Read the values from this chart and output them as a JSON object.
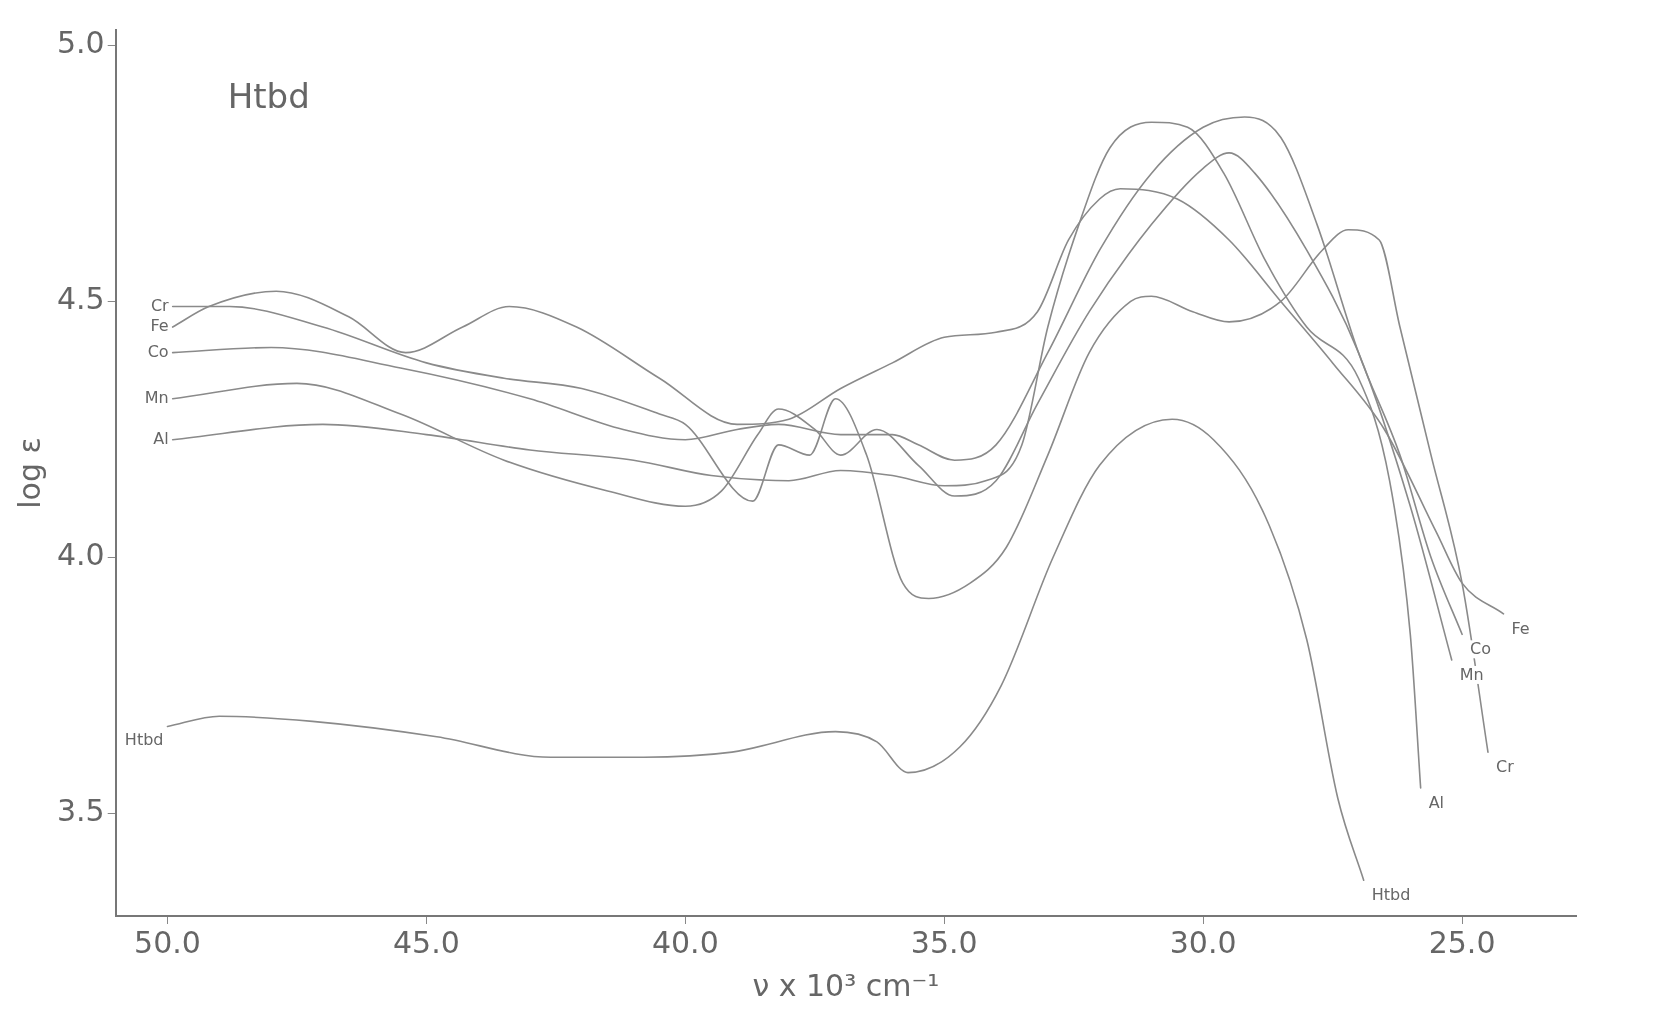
{
  "chart_data": {
    "type": "line",
    "title": "Htbd",
    "xlabel": "ν x 10³ cm⁻¹",
    "ylabel": "log ε",
    "xlim": [
      51.0,
      22.8
    ],
    "ylim": [
      3.3,
      5.03
    ],
    "xticks": [
      {
        "value": 50,
        "label": "50.0"
      },
      {
        "value": 45,
        "label": "45.0"
      },
      {
        "value": 40,
        "label": "40.0"
      },
      {
        "value": 35,
        "label": "35.0"
      },
      {
        "value": 30,
        "label": "30.0"
      },
      {
        "value": 25,
        "label": "25.0"
      }
    ],
    "yticks": [
      {
        "value": 3.5,
        "label": "3.5"
      },
      {
        "value": 4,
        "label": "4.0"
      },
      {
        "value": 4.5,
        "label": "4.5"
      },
      {
        "value": 5,
        "label": "5.0"
      }
    ],
    "grid": false,
    "legend": false,
    "marker": "none",
    "line_style": "solid",
    "series": [
      {
        "name": "Cr",
        "color": "#8a8a8a",
        "x": [
          49.9,
          48.8,
          47.0,
          45.0,
          43.5,
          42.0,
          40.5,
          40.0,
          38.7,
          38.2,
          37.6,
          37.1,
          36.5,
          35.8,
          35.3,
          34.5,
          33.8,
          33.0,
          32.2,
          31.4,
          31.0,
          30.2,
          29.5,
          28.5,
          27.7,
          27.2,
          26.6,
          26.2,
          25.6,
          25.0,
          24.5
        ],
        "values": [
          4.49,
          4.49,
          4.45,
          4.38,
          4.35,
          4.33,
          4.28,
          4.26,
          4.11,
          4.22,
          4.2,
          4.31,
          4.2,
          3.95,
          3.92,
          3.95,
          4.02,
          4.2,
          4.4,
          4.5,
          4.51,
          4.48,
          4.46,
          4.5,
          4.6,
          4.64,
          4.62,
          4.45,
          4.2,
          3.95,
          3.62
        ]
      },
      {
        "name": "Fe",
        "color": "#8a8a8a",
        "x": [
          49.9,
          49.2,
          47.9,
          46.5,
          45.4,
          44.3,
          43.4,
          42.1,
          40.5,
          39.0,
          38.0,
          37.0,
          36.0,
          35.0,
          34.0,
          33.2,
          32.6,
          32.0,
          31.6,
          30.5,
          29.5,
          28.5,
          27.5,
          26.5,
          25.5,
          25.0,
          24.2
        ],
        "values": [
          4.45,
          4.49,
          4.52,
          4.47,
          4.4,
          4.45,
          4.49,
          4.45,
          4.35,
          4.26,
          4.27,
          4.33,
          4.38,
          4.43,
          4.44,
          4.48,
          4.62,
          4.7,
          4.72,
          4.7,
          4.62,
          4.5,
          4.38,
          4.25,
          4.05,
          3.95,
          3.89
        ]
      },
      {
        "name": "Co",
        "color": "#8a8a8a",
        "x": [
          49.9,
          48.0,
          45.5,
          43.0,
          41.2,
          40.0,
          39.0,
          38.2,
          37.0,
          36.0,
          35.5,
          34.8,
          34.0,
          33.0,
          32.0,
          31.0,
          30.0,
          29.2,
          28.5,
          27.8,
          27.0,
          26.2,
          25.6,
          25.0
        ],
        "values": [
          4.4,
          4.41,
          4.37,
          4.31,
          4.25,
          4.23,
          4.25,
          4.26,
          4.24,
          4.24,
          4.22,
          4.19,
          4.22,
          4.4,
          4.6,
          4.75,
          4.84,
          4.86,
          4.82,
          4.65,
          4.4,
          4.2,
          4.0,
          3.85
        ]
      },
      {
        "name": "Mn",
        "color": "#8a8a8a",
        "x": [
          49.9,
          47.5,
          45.5,
          43.5,
          41.5,
          40.0,
          39.3,
          38.6,
          38.2,
          37.5,
          37.0,
          36.3,
          35.5,
          34.8,
          34.0,
          33.2,
          32.2,
          31.0,
          30.0,
          29.5,
          29.0,
          28.0,
          27.0,
          26.0,
          25.2
        ],
        "values": [
          4.31,
          4.34,
          4.28,
          4.19,
          4.13,
          4.1,
          4.13,
          4.24,
          4.29,
          4.25,
          4.2,
          4.25,
          4.18,
          4.12,
          4.15,
          4.3,
          4.48,
          4.65,
          4.76,
          4.79,
          4.75,
          4.6,
          4.4,
          4.1,
          3.8
        ]
      },
      {
        "name": "Al",
        "color": "#8a8a8a",
        "x": [
          49.9,
          47.0,
          45.0,
          43.0,
          41.0,
          39.5,
          38.0,
          37.0,
          36.0,
          35.0,
          34.2,
          33.5,
          33.0,
          32.4,
          31.8,
          31.0,
          30.3,
          29.6,
          28.8,
          28.0,
          27.0,
          26.4,
          26.0,
          25.8
        ],
        "values": [
          4.23,
          4.26,
          4.24,
          4.21,
          4.19,
          4.16,
          4.15,
          4.17,
          4.16,
          4.14,
          4.15,
          4.22,
          4.45,
          4.65,
          4.8,
          4.85,
          4.84,
          4.75,
          4.58,
          4.45,
          4.35,
          4.15,
          3.85,
          3.55
        ]
      },
      {
        "name": "Htbd",
        "color": "#8a8a8a",
        "x": [
          50.0,
          49.0,
          47.2,
          44.8,
          42.6,
          40.8,
          39.1,
          37.1,
          36.3,
          35.7,
          34.7,
          33.9,
          32.9,
          32.0,
          30.6,
          29.8,
          28.8,
          28.0,
          27.4,
          26.9
        ],
        "values": [
          3.67,
          3.69,
          3.68,
          3.65,
          3.61,
          3.61,
          3.62,
          3.66,
          3.64,
          3.58,
          3.63,
          3.75,
          4.0,
          4.18,
          4.27,
          4.23,
          4.08,
          3.84,
          3.53,
          3.37
        ]
      }
    ]
  }
}
